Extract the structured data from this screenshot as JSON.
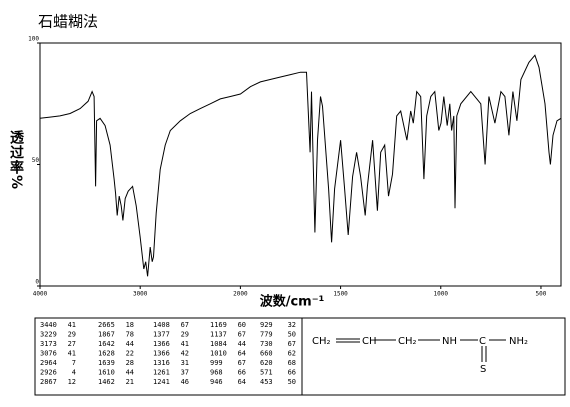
{
  "chart_data": {
    "type": "line",
    "title": "石蜡糊法",
    "ylabel": "透过率%",
    "xlabel": "波数/cm⁻¹",
    "x": [
      4000,
      3900,
      3800,
      3700,
      3600,
      3520,
      3480,
      3460,
      3445,
      3435,
      3400,
      3350,
      3300,
      3260,
      3245,
      3229,
      3210,
      3190,
      3173,
      3150,
      3120,
      3076,
      3040,
      3000,
      2964,
      2945,
      2926,
      2900,
      2880,
      2867,
      2840,
      2800,
      2750,
      2700,
      2600,
      2500,
      2400,
      2300,
      2200,
      2100,
      2000,
      1950,
      1900,
      1800,
      1750,
      1700,
      1670,
      1652,
      1645,
      1628,
      1615,
      1600,
      1590,
      1560,
      1545,
      1530,
      1500,
      1480,
      1462,
      1440,
      1420,
      1400,
      1377,
      1366,
      1340,
      1316,
      1300,
      1280,
      1261,
      1241,
      1220,
      1200,
      1169,
      1150,
      1137,
      1120,
      1100,
      1084,
      1070,
      1050,
      1030,
      1010,
      999,
      985,
      968,
      955,
      946,
      935,
      929,
      920,
      900,
      850,
      800,
      779,
      760,
      730,
      700,
      680,
      660,
      640,
      620,
      600,
      560,
      530,
      510,
      480,
      460,
      453,
      440,
      420,
      400
    ],
    "values": [
      69,
      69.5,
      70,
      71,
      73,
      76,
      80,
      78,
      41,
      68,
      69,
      66,
      58,
      44,
      38,
      29,
      37,
      33,
      27,
      36,
      39,
      41,
      33,
      20,
      7,
      10,
      4,
      16,
      10,
      12,
      30,
      48,
      58,
      64,
      68,
      71,
      73,
      75,
      77,
      78,
      79,
      82,
      84,
      86,
      87,
      88,
      88,
      55,
      80,
      22,
      60,
      78,
      74,
      40,
      18,
      40,
      60,
      40,
      21,
      45,
      55,
      45,
      29,
      41,
      60,
      31,
      55,
      58,
      37,
      46,
      70,
      72,
      60,
      72,
      67,
      80,
      78,
      44,
      70,
      78,
      80,
      64,
      67,
      78,
      66,
      75,
      64,
      70,
      32,
      70,
      75,
      80,
      75,
      50,
      78,
      67,
      80,
      78,
      62,
      80,
      68,
      85,
      92,
      95,
      90,
      75,
      55,
      50,
      62,
      68,
      69
    ],
    "color": "#000000",
    "xlim": [
      4000,
      400
    ],
    "xticks": [
      4000,
      3000,
      2000,
      1500,
      1000,
      500
    ],
    "ylim": [
      0,
      100
    ],
    "yticks": [
      0,
      50,
      100
    ]
  },
  "peak_table": {
    "groups": [
      [
        [
          3440,
          41
        ],
        [
          3229,
          29
        ],
        [
          3173,
          27
        ],
        [
          3076,
          41
        ],
        [
          2964,
          7
        ],
        [
          2926,
          4
        ],
        [
          2867,
          12
        ]
      ],
      [
        [
          2665,
          18
        ],
        [
          1867,
          78
        ],
        [
          1642,
          44
        ],
        [
          1628,
          22
        ],
        [
          1639,
          28
        ],
        [
          1610,
          44
        ],
        [
          1462,
          21
        ]
      ],
      [
        [
          1408,
          67
        ],
        [
          1377,
          29
        ],
        [
          1366,
          41
        ],
        [
          1366,
          42
        ],
        [
          1316,
          31
        ],
        [
          1261,
          37
        ],
        [
          1241,
          46
        ]
      ],
      [
        [
          1169,
          60
        ],
        [
          1137,
          67
        ],
        [
          1084,
          44
        ],
        [
          1010,
          64
        ],
        [
          999,
          67
        ],
        [
          968,
          66
        ],
        [
          946,
          64
        ]
      ],
      [
        [
          929,
          32
        ],
        [
          779,
          50
        ],
        [
          730,
          67
        ],
        [
          660,
          62
        ],
        [
          620,
          68
        ],
        [
          571,
          66
        ],
        [
          453,
          50
        ]
      ]
    ]
  },
  "structure": {
    "atoms": [
      "CH₂",
      "CH",
      "CH₂",
      "NH",
      "C",
      "NH₂"
    ],
    "sulfur": "S"
  }
}
